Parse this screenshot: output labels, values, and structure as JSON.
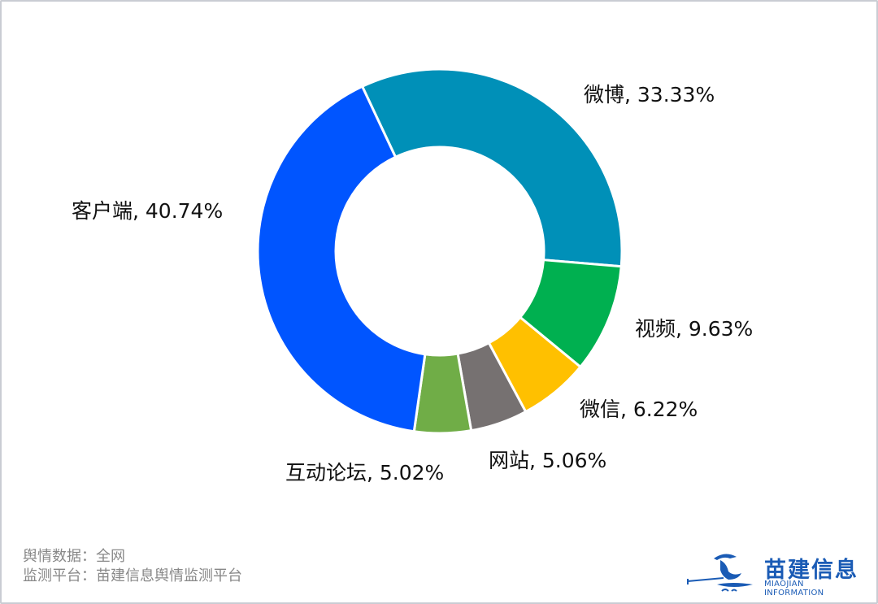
{
  "chart_data": {
    "type": "pie",
    "variant": "donut",
    "title": "",
    "categories": [
      "微博",
      "视频",
      "微信",
      "网站",
      "互动论坛",
      "客户端"
    ],
    "values": [
      33.33,
      9.63,
      6.22,
      5.06,
      5.02,
      40.74
    ],
    "colors": [
      "#0090b8",
      "#00b050",
      "#ffc000",
      "#767171",
      "#70ad47",
      "#0055ff"
    ],
    "labels": [
      "微博, 33.33%",
      "视频, 9.63%",
      "微信, 6.22%",
      "网站, 5.06%",
      "互动论坛, 5.02%",
      "客户端, 40.74%"
    ],
    "unit": "%",
    "legend": "none",
    "start_angle_deg": -25.2,
    "direction": "clockwise"
  },
  "footer": {
    "line1": "舆情数据：全网",
    "line2": "监测平台：苗建信息舆情监测平台"
  },
  "logo": {
    "name_cn": "苗建信息",
    "name_en": "MIAOJIAN INFORMATION"
  }
}
